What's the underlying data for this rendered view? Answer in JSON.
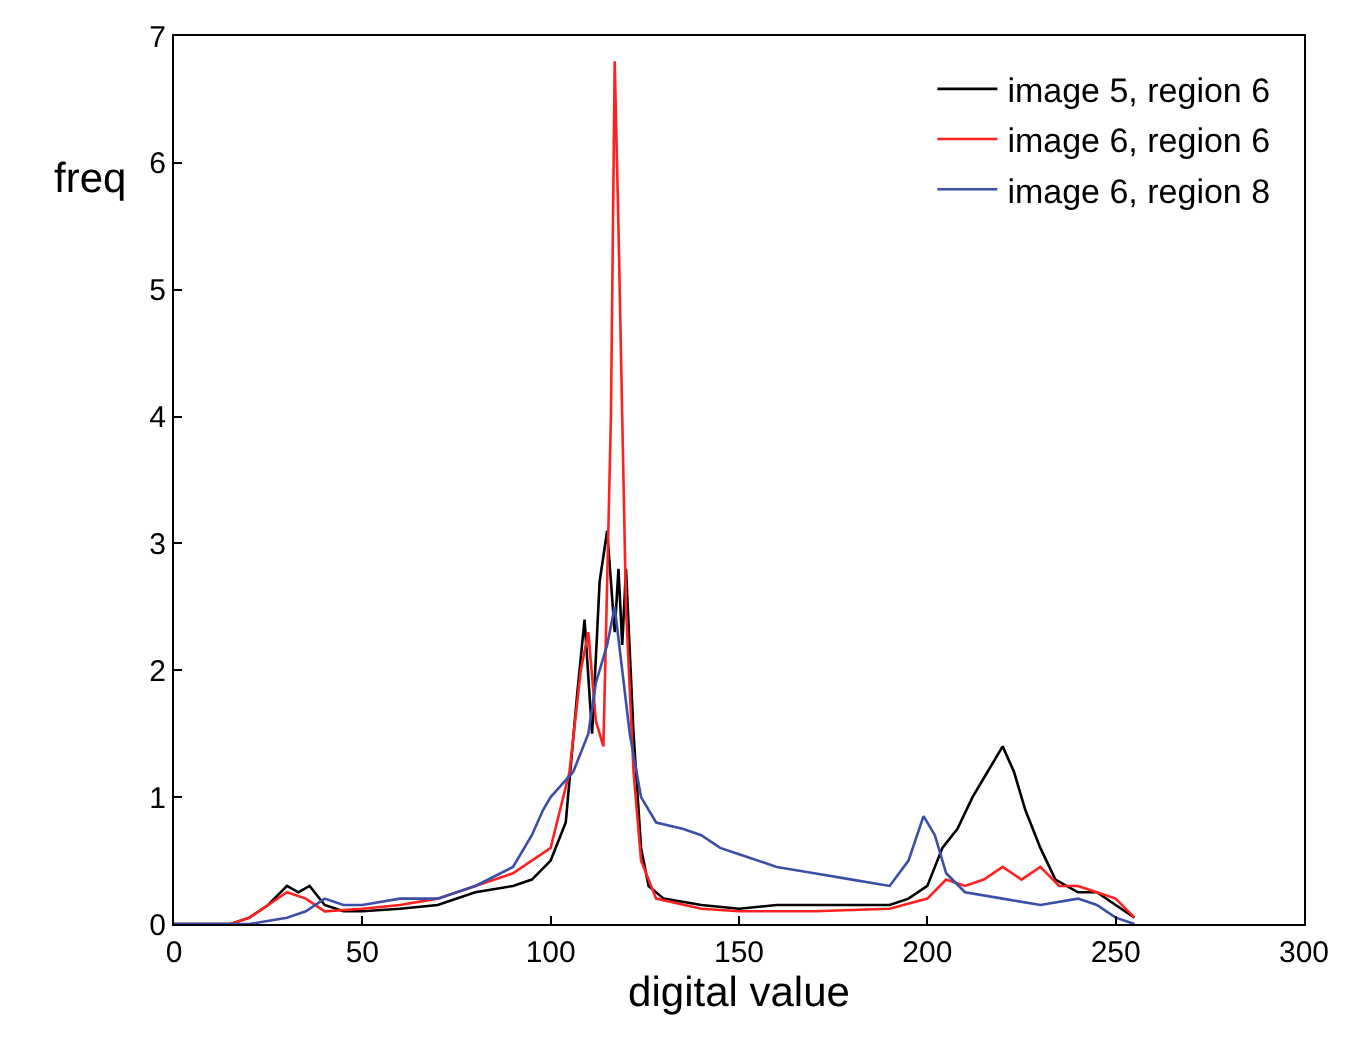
{
  "chart_data": {
    "type": "line",
    "xlabel": "digital value",
    "ylabel": "freq",
    "xlim": [
      0,
      300
    ],
    "ylim": [
      0,
      7
    ],
    "xticks": [
      0,
      50,
      100,
      150,
      200,
      250,
      300
    ],
    "yticks": [
      0,
      1,
      2,
      3,
      4,
      5,
      6,
      7
    ],
    "grid": false,
    "legend": "top right",
    "marker": "none",
    "line_style": "solid",
    "series": [
      {
        "name": "image 5, region 6",
        "color": "#000000",
        "x": [
          0,
          15,
          20,
          25,
          30,
          33,
          36,
          40,
          45,
          50,
          60,
          70,
          80,
          90,
          95,
          100,
          104,
          107,
          109,
          111,
          113,
          115,
          117,
          118,
          119,
          120,
          122,
          124,
          126,
          130,
          140,
          150,
          160,
          170,
          180,
          190,
          195,
          200,
          204,
          208,
          212,
          216,
          220,
          223,
          226,
          230,
          234,
          240,
          245,
          250,
          255
        ],
        "values": [
          0,
          0,
          0.05,
          0.15,
          0.3,
          0.25,
          0.3,
          0.15,
          0.1,
          0.1,
          0.12,
          0.15,
          0.25,
          0.3,
          0.35,
          0.5,
          0.8,
          1.8,
          2.4,
          1.5,
          2.7,
          3.1,
          2.3,
          2.8,
          2.2,
          2.8,
          1.5,
          0.6,
          0.3,
          0.2,
          0.15,
          0.12,
          0.15,
          0.15,
          0.15,
          0.15,
          0.2,
          0.3,
          0.6,
          0.75,
          1.0,
          1.2,
          1.4,
          1.2,
          0.9,
          0.6,
          0.35,
          0.25,
          0.25,
          0.15,
          0.05
        ]
      },
      {
        "name": "image 6, region 6",
        "color": "#ff2020",
        "x": [
          0,
          15,
          20,
          25,
          30,
          35,
          40,
          50,
          60,
          70,
          80,
          90,
          100,
          105,
          108,
          110,
          112,
          114,
          116,
          117,
          118,
          120,
          122,
          124,
          128,
          140,
          150,
          170,
          190,
          200,
          205,
          210,
          215,
          220,
          225,
          230,
          235,
          240,
          245,
          250,
          255
        ],
        "values": [
          0,
          0,
          0.05,
          0.15,
          0.25,
          0.2,
          0.1,
          0.12,
          0.15,
          0.2,
          0.3,
          0.4,
          0.6,
          1.2,
          2.0,
          2.3,
          1.6,
          1.4,
          4.0,
          6.8,
          5.5,
          2.5,
          1.2,
          0.5,
          0.2,
          0.12,
          0.1,
          0.1,
          0.12,
          0.2,
          0.35,
          0.3,
          0.35,
          0.45,
          0.35,
          0.45,
          0.3,
          0.3,
          0.25,
          0.2,
          0.05
        ]
      },
      {
        "name": "image 6, region 8",
        "color": "#3a4fa8",
        "x": [
          0,
          20,
          30,
          35,
          40,
          45,
          50,
          60,
          70,
          80,
          90,
          95,
          98,
          100,
          103,
          106,
          110,
          112,
          115,
          117,
          119,
          121,
          124,
          128,
          135,
          140,
          145,
          150,
          160,
          170,
          180,
          190,
          195,
          199,
          202,
          205,
          210,
          220,
          230,
          240,
          245,
          250,
          255
        ],
        "values": [
          0,
          0,
          0.05,
          0.1,
          0.2,
          0.15,
          0.15,
          0.2,
          0.2,
          0.3,
          0.45,
          0.7,
          0.9,
          1.0,
          1.1,
          1.2,
          1.5,
          1.9,
          2.2,
          2.5,
          2.0,
          1.5,
          1.0,
          0.8,
          0.75,
          0.7,
          0.6,
          0.55,
          0.45,
          0.4,
          0.35,
          0.3,
          0.5,
          0.85,
          0.7,
          0.4,
          0.25,
          0.2,
          0.15,
          0.2,
          0.15,
          0.05,
          0
        ]
      }
    ]
  }
}
